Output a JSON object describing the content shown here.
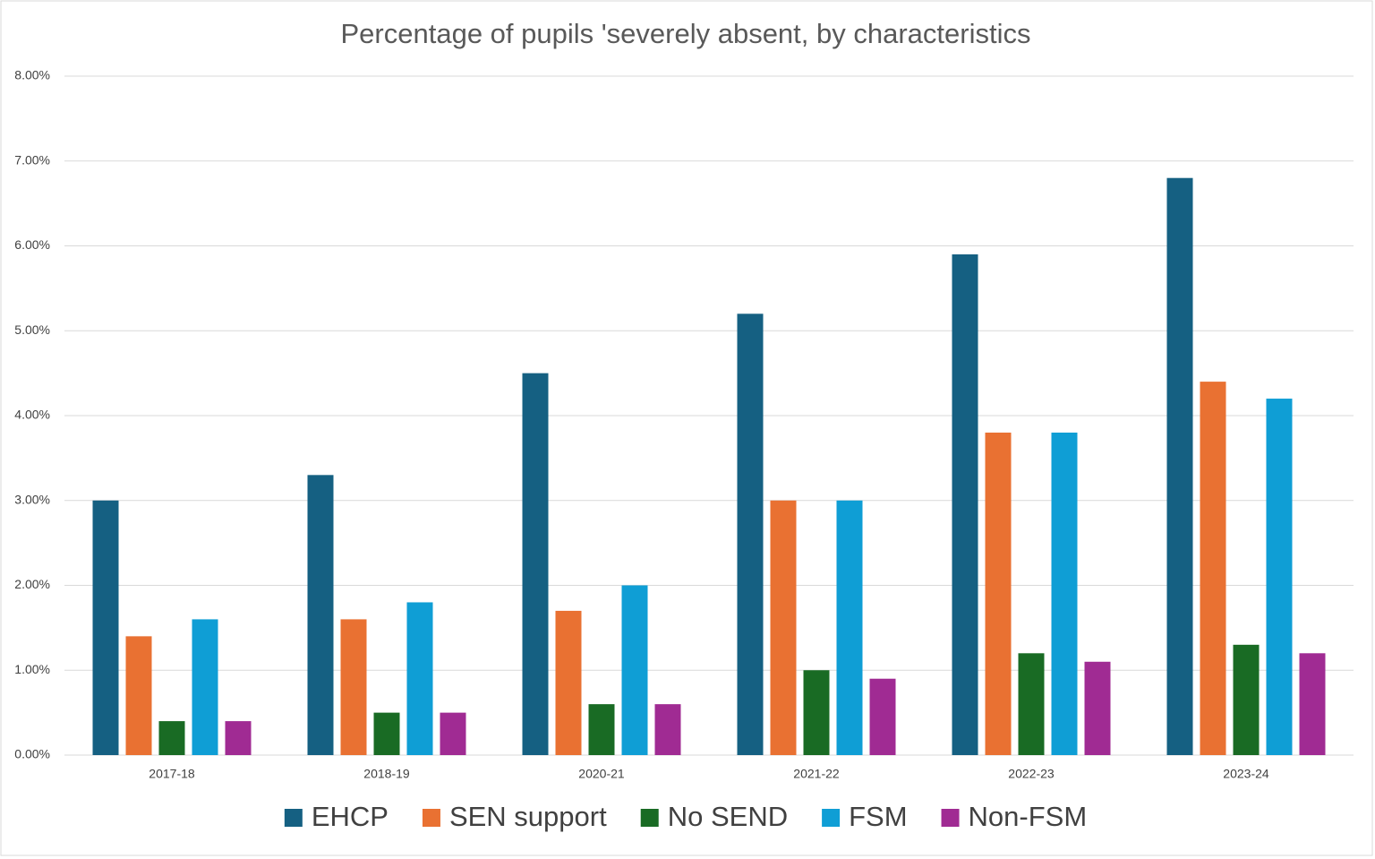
{
  "chart_data": {
    "type": "bar",
    "title": "Percentage of pupils 'severely absent, by characteristics",
    "categories": [
      "2017-18",
      "2018-19",
      "2020-21",
      "2021-22",
      "2022-23",
      "2023-24"
    ],
    "series": [
      {
        "name": "EHCP",
        "color": "#156082",
        "values": [
          3.0,
          3.3,
          4.5,
          5.2,
          5.9,
          6.8
        ]
      },
      {
        "name": "SEN support",
        "color": "#E97132",
        "values": [
          1.4,
          1.6,
          1.7,
          3.0,
          3.8,
          4.4
        ]
      },
      {
        "name": "No SEND",
        "color": "#196B24",
        "values": [
          0.4,
          0.5,
          0.6,
          1.0,
          1.2,
          1.3
        ]
      },
      {
        "name": "FSM",
        "color": "#0F9ED5",
        "values": [
          1.6,
          1.8,
          2.0,
          3.0,
          3.8,
          4.2
        ]
      },
      {
        "name": "Non-FSM",
        "color": "#A02B93",
        "values": [
          0.4,
          0.5,
          0.6,
          0.9,
          1.1,
          1.2
        ]
      }
    ],
    "ylim": [
      0,
      8
    ],
    "yticks": [
      {
        "value": 0,
        "label": "0.00%"
      },
      {
        "value": 1,
        "label": "1.00%"
      },
      {
        "value": 2,
        "label": "2.00%"
      },
      {
        "value": 3,
        "label": "3.00%"
      },
      {
        "value": 4,
        "label": "4.00%"
      },
      {
        "value": 5,
        "label": "5.00%"
      },
      {
        "value": 6,
        "label": "6.00%"
      },
      {
        "value": 7,
        "label": "7.00%"
      },
      {
        "value": 8,
        "label": "8.00%"
      }
    ],
    "grid": true,
    "legend": "bottom"
  }
}
